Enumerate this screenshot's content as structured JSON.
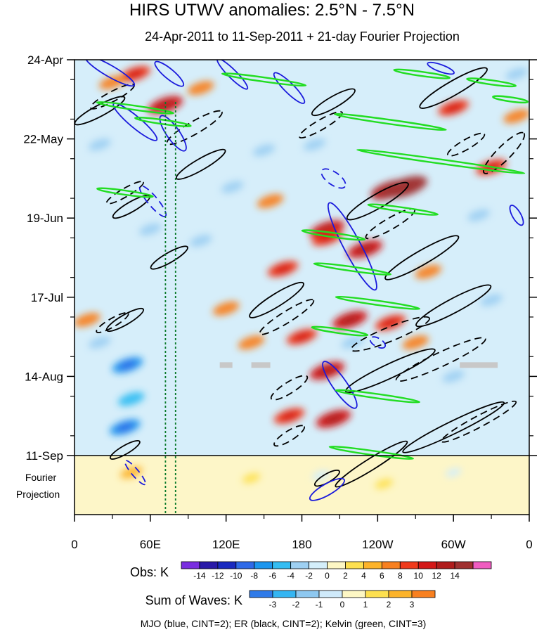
{
  "chart_data": {
    "type": "heatmap",
    "title": "HIRS UTWV anomalies: 2.5°N - 7.5°N",
    "subtitle": "24-Apr-2011 to 11-Sep-2011 + 21-day Fourier Projection",
    "x_tick_labels": [
      "0",
      "60E",
      "120E",
      "180",
      "120W",
      "60W",
      "0"
    ],
    "x_tick_lons": [
      0,
      60,
      120,
      180,
      240,
      300,
      360
    ],
    "xlim": [
      0,
      360
    ],
    "y_tick_labels": [
      "24-Apr",
      "22-May",
      "19-Jun",
      "17-Jul",
      "14-Aug",
      "11-Sep"
    ],
    "y_tick_days": [
      0,
      28,
      56,
      84,
      112,
      140
    ],
    "ylim_days": [
      0,
      161
    ],
    "projection_start_day": 140,
    "projection_label_lines": [
      "Fourier",
      "Projection"
    ],
    "dotted_lines_lon": [
      72,
      80
    ],
    "obs_colorbar": {
      "label": "Obs: K",
      "levels": [
        "-14",
        "-12",
        "-10",
        "-8",
        "-6",
        "-4",
        "-2",
        "0",
        "2",
        "4",
        "6",
        "8",
        "10",
        "12",
        "14"
      ],
      "colors": [
        "#7a2ee0",
        "#2a1aa8",
        "#1a2ac0",
        "#2f6ae8",
        "#1c96ee",
        "#34bdf2",
        "#9ed0f2",
        "#d4eefa",
        "#fdf7c4",
        "#fde050",
        "#fcb32a",
        "#f88020",
        "#f03a1c",
        "#d41818",
        "#b01c1c",
        "#a03030",
        "#f05cc0"
      ]
    },
    "waves_colorbar": {
      "label": "Sum of Waves: K",
      "levels": [
        "-3",
        "-2",
        "-1",
        "0",
        "1",
        "2",
        "3"
      ],
      "colors": [
        "#2f7ae8",
        "#34b5f2",
        "#8ec8f0",
        "#cfeafa",
        "#fdf7c4",
        "#fde050",
        "#fcb32a",
        "#f88020"
      ]
    },
    "contour_legend": "MJO (blue, CINT=2); ER (black, CINT=2); Kelvin (green, CINT=3)",
    "series": [
      {
        "name": "MJO",
        "color": "#1a1adc",
        "cint": 2
      },
      {
        "name": "ER",
        "color": "#000000",
        "cint": 2
      },
      {
        "name": "Kelvin",
        "color": "#22dd22",
        "cint": 3
      }
    ],
    "obs_hotspots": [
      {
        "lon": 48,
        "day": 5,
        "value": 8
      },
      {
        "lon": 72,
        "day": 16,
        "value": 10
      },
      {
        "lon": 30,
        "day": 8,
        "value": 6
      },
      {
        "lon": 200,
        "day": 60,
        "value": 10
      },
      {
        "lon": 200,
        "day": 63,
        "value": 8
      },
      {
        "lon": 230,
        "day": 67,
        "value": 10
      },
      {
        "lon": 250,
        "day": 46,
        "value": 12
      },
      {
        "lon": 262,
        "day": 45,
        "value": 14
      },
      {
        "lon": 155,
        "day": 50,
        "value": 6
      },
      {
        "lon": 165,
        "day": 74,
        "value": 8
      },
      {
        "lon": 218,
        "day": 92,
        "value": 10
      },
      {
        "lon": 250,
        "day": 93,
        "value": 8
      },
      {
        "lon": 200,
        "day": 110,
        "value": 10
      },
      {
        "lon": 205,
        "day": 127,
        "value": 10
      },
      {
        "lon": 170,
        "day": 126,
        "value": 8
      },
      {
        "lon": 120,
        "day": 88,
        "value": 6
      },
      {
        "lon": 300,
        "day": 17,
        "value": 8
      },
      {
        "lon": 330,
        "day": 38,
        "value": 8
      },
      {
        "lon": 270,
        "day": 100,
        "value": 6
      },
      {
        "lon": 350,
        "day": 20,
        "value": 6
      },
      {
        "lon": 100,
        "day": 10,
        "value": 6
      },
      {
        "lon": 140,
        "day": 100,
        "value": 6
      },
      {
        "lon": 180,
        "day": 98,
        "value": 8
      },
      {
        "lon": 280,
        "day": 75,
        "value": 6
      },
      {
        "lon": 10,
        "day": 92,
        "value": 6
      },
      {
        "lon": 45,
        "day": 146,
        "value": 4
      },
      {
        "lon": 140,
        "day": 148,
        "value": 2
      },
      {
        "lon": 245,
        "day": 150,
        "value": 2
      }
    ],
    "obs_coldspots": [
      {
        "lon": 42,
        "day": 108,
        "value": -8
      },
      {
        "lon": 40,
        "day": 130,
        "value": -8
      },
      {
        "lon": 45,
        "day": 120,
        "value": -6
      },
      {
        "lon": 20,
        "day": 30,
        "value": -4
      },
      {
        "lon": 125,
        "day": 45,
        "value": -4
      },
      {
        "lon": 100,
        "day": 64,
        "value": -4
      },
      {
        "lon": 150,
        "day": 32,
        "value": -4
      },
      {
        "lon": 220,
        "day": 100,
        "value": -4
      },
      {
        "lon": 300,
        "day": 112,
        "value": -4
      },
      {
        "lon": 330,
        "day": 85,
        "value": -4
      },
      {
        "lon": 190,
        "day": 30,
        "value": -4
      },
      {
        "lon": 60,
        "day": 60,
        "value": -4
      },
      {
        "lon": 20,
        "day": 100,
        "value": -4
      },
      {
        "lon": 320,
        "day": 55,
        "value": -4
      },
      {
        "lon": 195,
        "day": 147,
        "value": -2
      },
      {
        "lon": 300,
        "day": 146,
        "value": -1
      },
      {
        "lon": 350,
        "day": 5,
        "value": -4
      }
    ],
    "mjo_contours": [
      {
        "lon": 28,
        "day": 4,
        "rx": 40,
        "ry": 8,
        "rot": 30
      },
      {
        "lon": 48,
        "day": 22,
        "rx": 40,
        "ry": 8,
        "rot": 40
      },
      {
        "lon": 78,
        "day": 26,
        "rx": 30,
        "ry": 9,
        "rot": 55
      },
      {
        "lon": 75,
        "day": 5,
        "rx": 26,
        "ry": 7,
        "rot": 40
      },
      {
        "lon": 62,
        "day": 50,
        "rx": 28,
        "ry": 7,
        "rot": 50,
        "dashed": true
      },
      {
        "lon": 125,
        "day": 5,
        "rx": 30,
        "ry": 6,
        "rot": 45
      },
      {
        "lon": 170,
        "day": 10,
        "rx": 30,
        "ry": 7,
        "rot": 45
      },
      {
        "lon": 205,
        "day": 42,
        "rx": 20,
        "ry": 9,
        "rot": 35,
        "dashed": true
      },
      {
        "lon": 220,
        "day": 66,
        "rx": 70,
        "ry": 12,
        "rot": 62
      },
      {
        "lon": 290,
        "day": 3,
        "rx": 20,
        "ry": 5,
        "rot": 20
      },
      {
        "lon": 350,
        "day": 55,
        "rx": 16,
        "ry": 6,
        "rot": 60
      },
      {
        "lon": 210,
        "day": 115,
        "rx": 40,
        "ry": 10,
        "rot": 55
      },
      {
        "lon": 240,
        "day": 100,
        "rx": 12,
        "ry": 6,
        "rot": 30,
        "dashed": true
      },
      {
        "lon": 48,
        "day": 146,
        "rx": 22,
        "ry": 5,
        "rot": 50,
        "dashed": true
      },
      {
        "lon": 200,
        "day": 152,
        "rx": 28,
        "ry": 8,
        "rot": -30
      }
    ],
    "er_contours": [
      {
        "lon": 20,
        "day": 18,
        "rx": 40,
        "ry": 8,
        "rot": -28
      },
      {
        "lon": 30,
        "day": 13,
        "rx": 35,
        "ry": 7,
        "rot": -28,
        "dashed": true
      },
      {
        "lon": 95,
        "day": 24,
        "rx": 45,
        "ry": 9,
        "rot": -30,
        "dashed": true
      },
      {
        "lon": 100,
        "day": 37,
        "rx": 40,
        "ry": 8,
        "rot": -30
      },
      {
        "lon": 40,
        "day": 47,
        "rx": 30,
        "ry": 6,
        "rot": -30,
        "dashed": true
      },
      {
        "lon": 45,
        "day": 52,
        "rx": 30,
        "ry": 7,
        "rot": -30
      },
      {
        "lon": 75,
        "day": 70,
        "rx": 30,
        "ry": 7,
        "rot": -30
      },
      {
        "lon": 30,
        "day": 93,
        "rx": 26,
        "ry": 6,
        "rot": -30,
        "dashed": true
      },
      {
        "lon": 40,
        "day": 92,
        "rx": 30,
        "ry": 7,
        "rot": -30
      },
      {
        "lon": 168,
        "day": 91,
        "rx": 45,
        "ry": 8,
        "rot": -32,
        "dashed": true
      },
      {
        "lon": 160,
        "day": 85,
        "rx": 45,
        "ry": 9,
        "rot": -32
      },
      {
        "lon": 205,
        "day": 15,
        "rx": 35,
        "ry": 8,
        "rot": -30
      },
      {
        "lon": 195,
        "day": 23,
        "rx": 35,
        "ry": 7,
        "rot": -30,
        "dashed": true
      },
      {
        "lon": 240,
        "day": 50,
        "rx": 50,
        "ry": 10,
        "rot": -30
      },
      {
        "lon": 250,
        "day": 58,
        "rx": 40,
        "ry": 8,
        "rot": -30,
        "dashed": true
      },
      {
        "lon": 275,
        "day": 70,
        "rx": 60,
        "ry": 10,
        "rot": -30
      },
      {
        "lon": 300,
        "day": 10,
        "rx": 55,
        "ry": 10,
        "rot": -30
      },
      {
        "lon": 310,
        "day": 30,
        "rx": 30,
        "ry": 7,
        "rot": -30,
        "dashed": true
      },
      {
        "lon": 340,
        "day": 33,
        "rx": 40,
        "ry": 10,
        "rot": -45,
        "dashed": true
      },
      {
        "lon": 250,
        "day": 97,
        "rx": 60,
        "ry": 10,
        "rot": -22,
        "dashed": true
      },
      {
        "lon": 300,
        "day": 87,
        "rx": 60,
        "ry": 10,
        "rot": -28
      },
      {
        "lon": 290,
        "day": 106,
        "rx": 70,
        "ry": 10,
        "rot": -25,
        "dashed": true
      },
      {
        "lon": 250,
        "day": 110,
        "rx": 70,
        "ry": 10,
        "rot": -25
      },
      {
        "lon": 300,
        "day": 130,
        "rx": 80,
        "ry": 9,
        "rot": -26
      },
      {
        "lon": 320,
        "day": 128,
        "rx": 60,
        "ry": 8,
        "rot": -28,
        "dashed": true
      },
      {
        "lon": 170,
        "day": 116,
        "rx": 30,
        "ry": 8,
        "rot": -32,
        "dashed": true
      },
      {
        "lon": 170,
        "day": 133,
        "rx": 25,
        "ry": 7,
        "rot": -32,
        "dashed": true
      },
      {
        "lon": 40,
        "day": 138,
        "rx": 24,
        "ry": 6,
        "rot": -30
      },
      {
        "lon": 235,
        "day": 143,
        "rx": 60,
        "ry": 8,
        "rot": -32
      },
      {
        "lon": 200,
        "day": 148,
        "rx": 20,
        "ry": 6,
        "rot": -30
      }
    ],
    "kelvin_contours": [
      {
        "lon": 48,
        "day": 17,
        "rx": 55,
        "ry": 3,
        "rot": 8
      },
      {
        "lon": 70,
        "day": 22,
        "rx": 40,
        "ry": 3,
        "rot": 8
      },
      {
        "lon": 150,
        "day": 7,
        "rx": 60,
        "ry": 3,
        "rot": 8
      },
      {
        "lon": 275,
        "day": 5,
        "rx": 40,
        "ry": 3,
        "rot": 8
      },
      {
        "lon": 330,
        "day": 8,
        "rx": 35,
        "ry": 3,
        "rot": 8
      },
      {
        "lon": 250,
        "day": 22,
        "rx": 80,
        "ry": 3,
        "rot": 8
      },
      {
        "lon": 345,
        "day": 14,
        "rx": 25,
        "ry": 3,
        "rot": 8
      },
      {
        "lon": 290,
        "day": 36,
        "rx": 120,
        "ry": 3,
        "rot": 8
      },
      {
        "lon": 40,
        "day": 47,
        "rx": 40,
        "ry": 3,
        "rot": 8
      },
      {
        "lon": 260,
        "day": 53,
        "rx": 50,
        "ry": 3,
        "rot": 8
      },
      {
        "lon": 205,
        "day": 62,
        "rx": 45,
        "ry": 3,
        "rot": 8
      },
      {
        "lon": 220,
        "day": 74,
        "rx": 55,
        "ry": 3,
        "rot": 8
      },
      {
        "lon": 240,
        "day": 86,
        "rx": 60,
        "ry": 3,
        "rot": 8
      },
      {
        "lon": 210,
        "day": 96,
        "rx": 40,
        "ry": 3,
        "rot": 8
      },
      {
        "lon": 240,
        "day": 119,
        "rx": 60,
        "ry": 3,
        "rot": 8
      },
      {
        "lon": 235,
        "day": 139,
        "rx": 60,
        "ry": 3,
        "rot": 8
      }
    ],
    "missing_data_segments": [
      {
        "lon_start": 115,
        "lon_end": 125,
        "day": 108
      },
      {
        "lon_start": 140,
        "lon_end": 155,
        "day": 108
      },
      {
        "lon_start": 305,
        "lon_end": 335,
        "day": 108
      }
    ]
  }
}
